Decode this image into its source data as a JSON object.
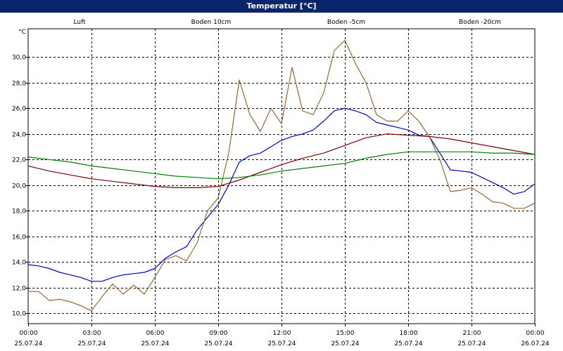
{
  "window": {
    "title": "Temperatur [°C]"
  },
  "chart_data": {
    "type": "line",
    "title": "Temperatur [°C]",
    "ylabel": "°C",
    "ylim": [
      9.2,
      32.2
    ],
    "y_ticks": [
      10.0,
      12.0,
      14.0,
      16.0,
      18.0,
      20.0,
      22.0,
      24.0,
      26.0,
      28.0,
      30.0
    ],
    "y_tick_labels": [
      "10,0",
      "12,0",
      "14,0",
      "16,0",
      "18,0",
      "20,0",
      "22,0",
      "24,0",
      "26,0",
      "28,0",
      "30,0"
    ],
    "xlim": [
      0,
      24
    ],
    "x_ticks": [
      0,
      3,
      6,
      9,
      12,
      15,
      18,
      21,
      24
    ],
    "x_tick_times": [
      "00:00",
      "03:00",
      "06:00",
      "09:00",
      "12:00",
      "15:00",
      "18:00",
      "21:00",
      "00:00"
    ],
    "x_tick_dates": [
      "25.07.24",
      "25.07.24",
      "25.07.24",
      "25.07.24",
      "25.07.24",
      "25.07.24",
      "25.07.24",
      "25.07.24",
      "26.07.24"
    ],
    "grid": true,
    "legend_position": "top",
    "series": [
      {
        "name": "Luft",
        "color": "#0000cc",
        "points": [
          [
            0,
            13.8
          ],
          [
            0.5,
            13.7
          ],
          [
            1,
            13.5
          ],
          [
            1.5,
            13.2
          ],
          [
            2,
            13.0
          ],
          [
            2.5,
            12.8
          ],
          [
            3,
            12.5
          ],
          [
            3.5,
            12.5
          ],
          [
            4,
            12.8
          ],
          [
            4.5,
            13.0
          ],
          [
            5,
            13.1
          ],
          [
            5.5,
            13.2
          ],
          [
            6,
            13.5
          ],
          [
            6.5,
            14.3
          ],
          [
            7,
            14.8
          ],
          [
            7.5,
            15.2
          ],
          [
            8,
            16.5
          ],
          [
            8.5,
            17.5
          ],
          [
            9,
            18.5
          ],
          [
            9.5,
            20.0
          ],
          [
            10,
            21.8
          ],
          [
            10.5,
            22.3
          ],
          [
            11,
            22.5
          ],
          [
            11.5,
            23.0
          ],
          [
            12,
            23.5
          ],
          [
            12.5,
            23.8
          ],
          [
            13,
            24.0
          ],
          [
            13.5,
            24.3
          ],
          [
            14,
            25.0
          ],
          [
            14.5,
            25.8
          ],
          [
            15,
            26.0
          ],
          [
            15.5,
            25.8
          ],
          [
            16,
            25.5
          ],
          [
            16.5,
            24.9
          ],
          [
            17,
            24.7
          ],
          [
            17.5,
            24.5
          ],
          [
            18,
            24.3
          ],
          [
            18.5,
            23.9
          ],
          [
            19,
            23.8
          ],
          [
            19.5,
            22.5
          ],
          [
            20,
            21.2
          ],
          [
            20.5,
            21.1
          ],
          [
            21,
            21.0
          ],
          [
            21.5,
            20.6
          ],
          [
            22,
            20.2
          ],
          [
            22.5,
            19.8
          ],
          [
            23,
            19.3
          ],
          [
            23.5,
            19.5
          ],
          [
            24,
            20.1
          ]
        ]
      },
      {
        "name": "Boden 10cm",
        "color": "#996633",
        "points": [
          [
            0,
            11.7
          ],
          [
            0.5,
            11.7
          ],
          [
            1,
            11.0
          ],
          [
            1.5,
            11.1
          ],
          [
            2,
            10.9
          ],
          [
            2.5,
            10.6
          ],
          [
            3,
            10.2
          ],
          [
            3.5,
            11.3
          ],
          [
            4,
            12.3
          ],
          [
            4.5,
            11.5
          ],
          [
            5,
            12.2
          ],
          [
            5.5,
            11.5
          ],
          [
            6,
            12.8
          ],
          [
            6.5,
            14.2
          ],
          [
            7,
            14.5
          ],
          [
            7.5,
            14.1
          ],
          [
            8,
            15.5
          ],
          [
            8.5,
            18.0
          ],
          [
            9,
            19.0
          ],
          [
            9.5,
            22.5
          ],
          [
            10,
            28.2
          ],
          [
            10.5,
            25.5
          ],
          [
            11,
            24.2
          ],
          [
            11.5,
            26.0
          ],
          [
            12,
            24.8
          ],
          [
            12.5,
            29.2
          ],
          [
            13,
            25.8
          ],
          [
            13.5,
            25.5
          ],
          [
            14,
            27.2
          ],
          [
            14.5,
            30.5
          ],
          [
            15,
            31.3
          ],
          [
            15.5,
            29.5
          ],
          [
            16,
            28.0
          ],
          [
            16.5,
            25.5
          ],
          [
            17,
            25.0
          ],
          [
            17.5,
            25.0
          ],
          [
            18,
            25.8
          ],
          [
            18.5,
            25.0
          ],
          [
            19,
            23.8
          ],
          [
            19.5,
            22.0
          ],
          [
            20,
            19.5
          ],
          [
            20.5,
            19.6
          ],
          [
            21,
            19.8
          ],
          [
            21.5,
            19.3
          ],
          [
            22,
            18.7
          ],
          [
            22.5,
            18.6
          ],
          [
            23,
            18.2
          ],
          [
            23.5,
            18.2
          ],
          [
            24,
            18.6
          ]
        ]
      },
      {
        "name": "Boden -5cm",
        "color": "#800000",
        "points": [
          [
            0,
            21.5
          ],
          [
            1,
            21.1
          ],
          [
            2,
            20.8
          ],
          [
            3,
            20.5
          ],
          [
            4,
            20.3
          ],
          [
            5,
            20.1
          ],
          [
            6,
            19.9
          ],
          [
            7,
            19.8
          ],
          [
            8,
            19.8
          ],
          [
            9,
            19.9
          ],
          [
            10,
            20.4
          ],
          [
            11,
            21.0
          ],
          [
            12,
            21.6
          ],
          [
            13,
            22.1
          ],
          [
            14,
            22.5
          ],
          [
            15,
            23.1
          ],
          [
            16,
            23.7
          ],
          [
            17,
            24.0
          ],
          [
            18,
            23.9
          ],
          [
            19,
            23.8
          ],
          [
            20,
            23.6
          ],
          [
            21,
            23.3
          ],
          [
            22,
            23.0
          ],
          [
            23,
            22.7
          ],
          [
            24,
            22.4
          ]
        ]
      },
      {
        "name": "Boden -20cm",
        "color": "#008000",
        "points": [
          [
            0,
            22.2
          ],
          [
            1,
            22.0
          ],
          [
            2,
            21.8
          ],
          [
            3,
            21.5
          ],
          [
            4,
            21.3
          ],
          [
            5,
            21.1
          ],
          [
            6,
            20.9
          ],
          [
            7,
            20.7
          ],
          [
            8,
            20.6
          ],
          [
            9,
            20.5
          ],
          [
            10,
            20.6
          ],
          [
            11,
            20.8
          ],
          [
            12,
            21.1
          ],
          [
            13,
            21.3
          ],
          [
            14,
            21.5
          ],
          [
            15,
            21.7
          ],
          [
            16,
            22.1
          ],
          [
            17,
            22.4
          ],
          [
            18,
            22.6
          ],
          [
            19,
            22.6
          ],
          [
            20,
            22.6
          ],
          [
            21,
            22.6
          ],
          [
            22,
            22.5
          ],
          [
            23,
            22.5
          ],
          [
            24,
            22.4
          ]
        ]
      }
    ]
  }
}
